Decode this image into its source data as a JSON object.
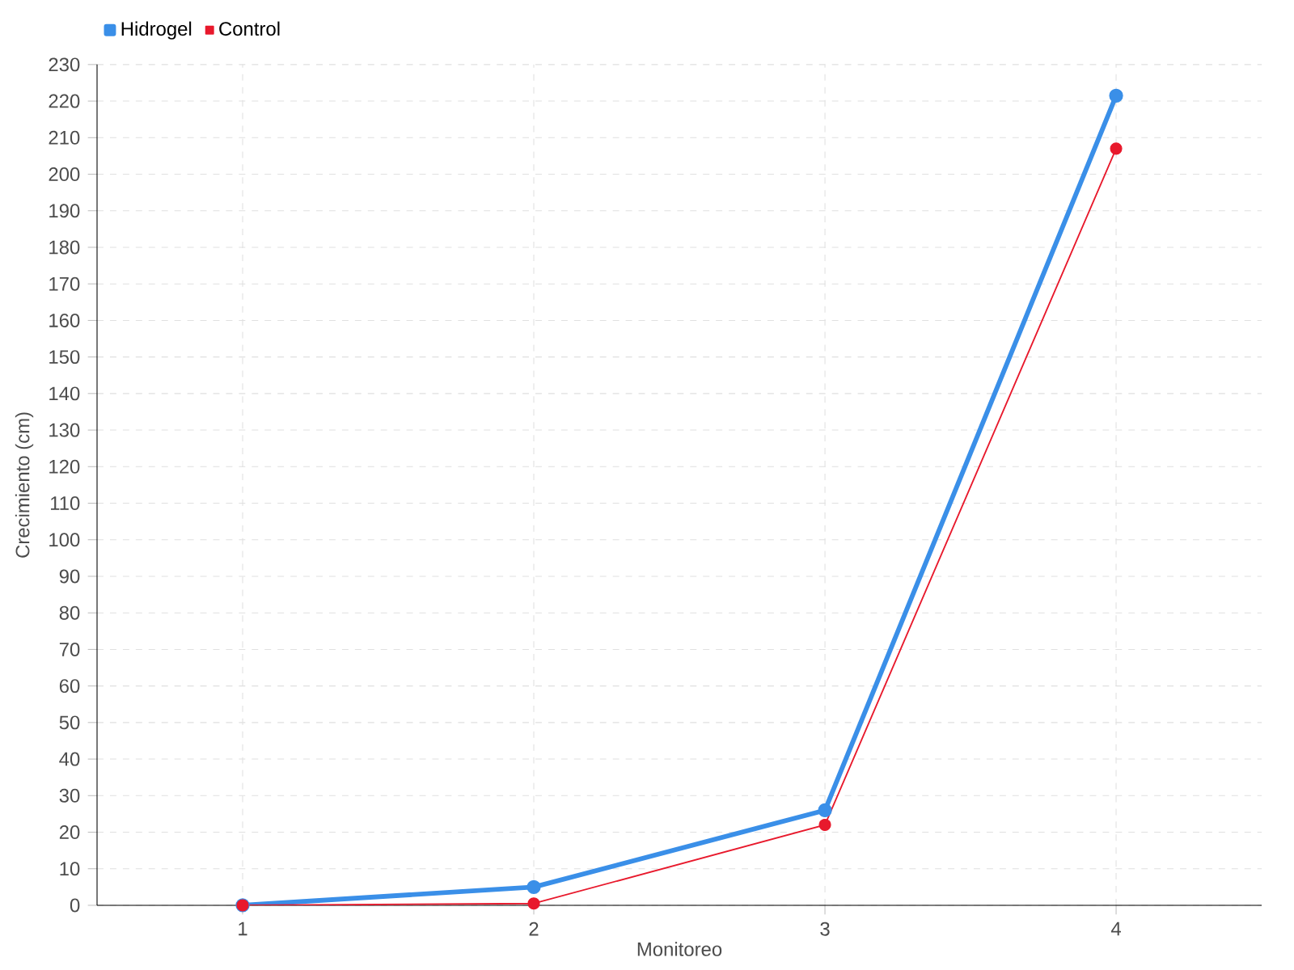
{
  "chart_data": {
    "type": "line",
    "xlabel": "Monitoreo",
    "ylabel": "Crecimiento (cm)",
    "x": [
      1,
      2,
      3,
      4
    ],
    "xlim": [
      0.5,
      4.5
    ],
    "xticks": [
      1,
      2,
      3,
      4
    ],
    "ylim": [
      0,
      230
    ],
    "yticks": [
      0,
      10,
      20,
      30,
      40,
      50,
      60,
      70,
      80,
      90,
      100,
      110,
      120,
      130,
      140,
      150,
      160,
      170,
      180,
      190,
      200,
      210,
      220,
      230
    ],
    "series": [
      {
        "name": "Hidrogel",
        "color": "#3a8fe8",
        "values": [
          0,
          5,
          26,
          221.5
        ]
      },
      {
        "name": "Control",
        "color": "#e8192c",
        "values": [
          0,
          0.5,
          22,
          207
        ]
      }
    ],
    "grid": true,
    "legend": "top left",
    "marker": "circle",
    "line_style": "solid"
  }
}
